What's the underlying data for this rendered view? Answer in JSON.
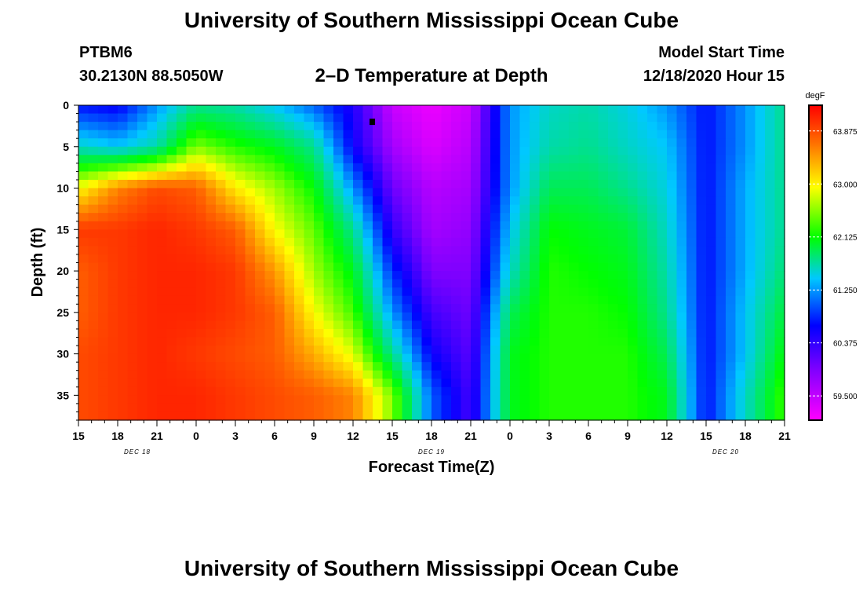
{
  "header": {
    "title": "University of Southern Mississippi Ocean Cube",
    "station_id": "PTBM6",
    "station_coords": "30.2130N 88.5050W",
    "plot_title": "2–D Temperature at Depth",
    "start_label": "Model Start Time",
    "start_value": "12/18/2020 Hour 15"
  },
  "footer": {
    "title": "University of Southern Mississippi Ocean Cube"
  },
  "colors": {
    "min": "#ff00ff",
    "low": "#8000ff",
    "cold": "#0000ff",
    "cool": "#00c8ff",
    "mid": "#00ff00",
    "warm": "#ffff00",
    "hot": "#ff7000",
    "max": "#ff0000"
  },
  "chart_data": {
    "type": "heatmap",
    "title": "2–D Temperature at Depth",
    "xlabel": "Forecast Time(Z)",
    "ylabel": "Depth (ft)",
    "x_ticks": [
      "15",
      "18",
      "21",
      "0",
      "3",
      "6",
      "9",
      "12",
      "15",
      "18",
      "21",
      "0",
      "3",
      "6",
      "9",
      "12",
      "15",
      "18",
      "21"
    ],
    "date_labels": [
      {
        "label": "DEC 18",
        "x_index": 1.5
      },
      {
        "label": "DEC 19",
        "x_index": 9
      },
      {
        "label": "DEC 20",
        "x_index": 16.5
      }
    ],
    "y_ticks": [
      0,
      5,
      10,
      15,
      20,
      25,
      30,
      35
    ],
    "ylim": [
      0,
      38
    ],
    "y_inverted": true,
    "colorbar": {
      "unit": "degF",
      "ticks": [
        "63.875",
        "63.000",
        "62.125",
        "61.250",
        "60.375",
        "59.500"
      ],
      "range": [
        59.1,
        64.3
      ]
    },
    "time_series_hours": [
      0,
      3,
      6,
      9,
      12,
      15,
      18,
      21,
      24,
      27,
      30,
      33,
      36,
      39,
      42,
      45,
      48,
      51,
      54
    ],
    "depth_profile": {
      "depths_ft": [
        0,
        5,
        10,
        15,
        20,
        25,
        30,
        35,
        38
      ],
      "temperatures_degF": [
        [
          60.5,
          61.4,
          62.9,
          63.9,
          63.7,
          63.7,
          63.8,
          63.8,
          63.8
        ],
        [
          60.4,
          61.2,
          63.5,
          63.9,
          63.9,
          63.9,
          63.9,
          63.9,
          63.9
        ],
        [
          61.0,
          61.5,
          63.8,
          64.0,
          64.0,
          64.0,
          64.0,
          64.0,
          64.0
        ],
        [
          61.6,
          62.5,
          63.7,
          63.9,
          64.0,
          64.0,
          63.9,
          64.0,
          64.0
        ],
        [
          61.5,
          62.2,
          63.0,
          63.7,
          63.9,
          63.9,
          63.8,
          63.9,
          63.9
        ],
        [
          61.2,
          62.0,
          62.6,
          62.9,
          63.4,
          63.7,
          63.7,
          63.8,
          63.8
        ],
        [
          60.8,
          61.6,
          62.1,
          62.4,
          62.6,
          62.9,
          63.3,
          63.7,
          63.7
        ],
        [
          60.3,
          60.4,
          61.0,
          61.6,
          62.0,
          62.3,
          62.8,
          63.5,
          63.5
        ],
        [
          59.4,
          59.6,
          59.9,
          60.2,
          60.6,
          61.0,
          61.6,
          62.5,
          62.5
        ],
        [
          59.2,
          59.3,
          59.5,
          59.6,
          59.8,
          60.1,
          60.4,
          60.8,
          60.8
        ],
        [
          59.4,
          59.5,
          59.6,
          59.7,
          59.8,
          59.9,
          60.0,
          60.1,
          60.1
        ],
        [
          61.0,
          61.0,
          61.0,
          61.2,
          61.4,
          61.8,
          62.0,
          62.0,
          62.0
        ],
        [
          61.4,
          61.5,
          61.8,
          62.1,
          62.2,
          62.2,
          62.2,
          62.2,
          62.2
        ],
        [
          61.5,
          61.6,
          61.8,
          62.0,
          62.1,
          62.2,
          62.2,
          62.2,
          62.2
        ],
        [
          61.3,
          61.4,
          61.6,
          61.9,
          62.0,
          62.1,
          62.2,
          62.2,
          62.2
        ],
        [
          61.0,
          61.2,
          61.3,
          61.4,
          61.5,
          61.6,
          61.8,
          62.0,
          62.0
        ],
        [
          60.5,
          60.5,
          60.5,
          60.5,
          60.5,
          60.5,
          60.5,
          60.5,
          60.5
        ],
        [
          61.0,
          61.0,
          61.1,
          61.1,
          61.1,
          61.2,
          61.2,
          61.4,
          61.4
        ],
        [
          61.6,
          61.6,
          61.6,
          61.6,
          61.7,
          61.9,
          62.1,
          62.3,
          62.3
        ]
      ]
    },
    "marker": {
      "x_index": 7.5,
      "depth_ft": 2
    }
  }
}
